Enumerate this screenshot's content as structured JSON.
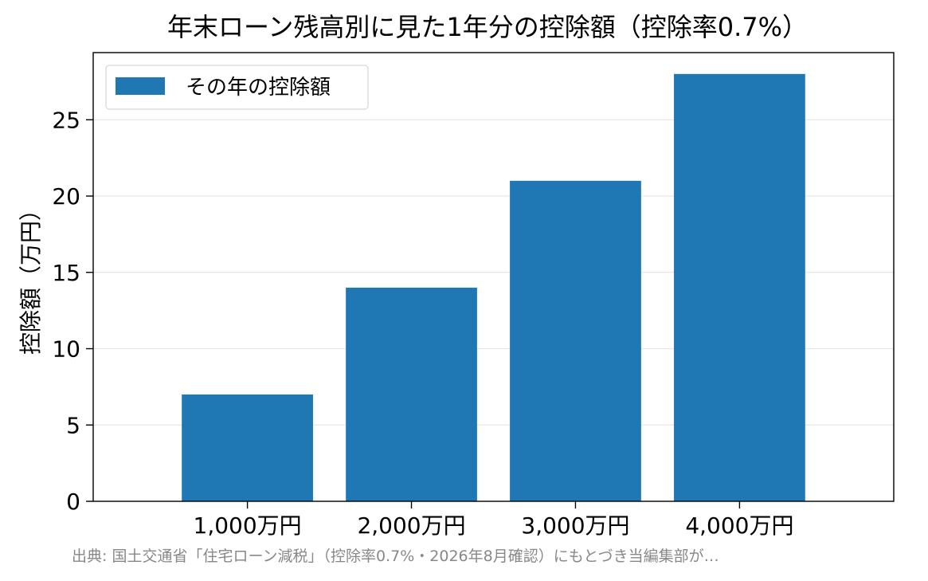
{
  "chart_data": {
    "type": "bar",
    "title": "年末ローン残高別に見た1年分の控除額（控除率0.7%）",
    "xlabel": "",
    "ylabel": "控除額（万円）",
    "categories": [
      "1,000万円",
      "2,000万円",
      "3,000万円",
      "4,000万円"
    ],
    "series": [
      {
        "name": "その年の控除額",
        "values": [
          7,
          14,
          21,
          28
        ],
        "color": "#1f77b4"
      }
    ],
    "ylim": [
      0,
      29.4
    ],
    "yticks": [
      0,
      5,
      10,
      15,
      20,
      25
    ],
    "grid": "horizontal",
    "legend": "top-left",
    "source_note": "出典: 国土交通省「住宅ローン減税」（控除率0.7%・2026年8月確認）にもとづき当編集部が…"
  }
}
